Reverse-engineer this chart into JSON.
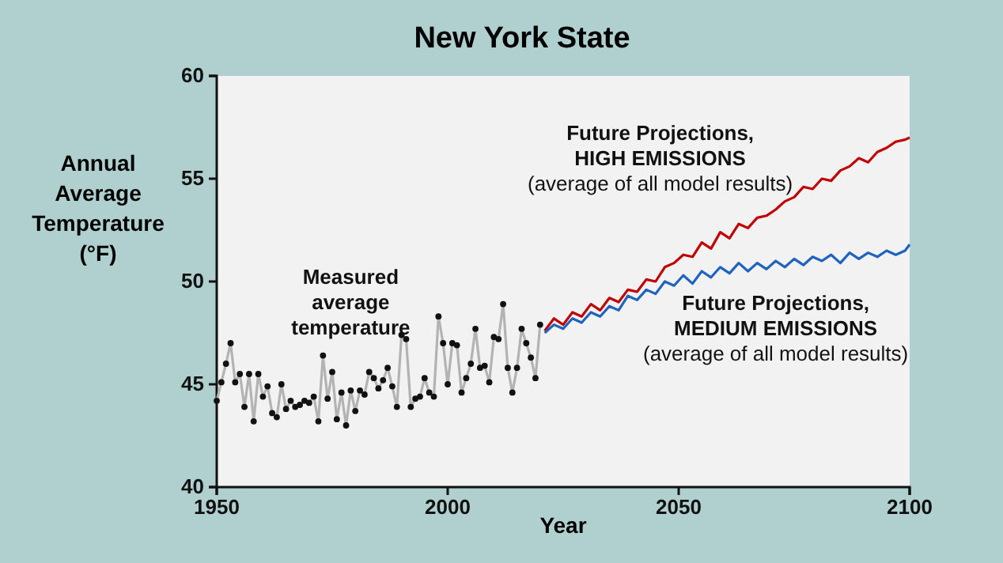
{
  "chart_data": {
    "type": "line",
    "title": "New York State",
    "xlabel": "Year",
    "ylabel": "Annual Average Temperature (°F)",
    "xlim": [
      1950,
      2100
    ],
    "xticks": [
      1950,
      2000,
      2050,
      2100
    ],
    "ylim": [
      40,
      60
    ],
    "yticks": [
      40,
      45,
      50,
      55,
      60
    ],
    "grid": false,
    "legend": false,
    "series": [
      {
        "name": "Measured average temperature",
        "color": "#b3b3b3",
        "marker": "circle",
        "x": [
          1950,
          1951,
          1952,
          1953,
          1954,
          1955,
          1956,
          1957,
          1958,
          1959,
          1960,
          1961,
          1962,
          1963,
          1964,
          1965,
          1966,
          1967,
          1968,
          1969,
          1970,
          1971,
          1972,
          1973,
          1974,
          1975,
          1976,
          1977,
          1978,
          1979,
          1980,
          1981,
          1982,
          1983,
          1984,
          1985,
          1986,
          1987,
          1988,
          1989,
          1990,
          1991,
          1992,
          1993,
          1994,
          1995,
          1996,
          1997,
          1998,
          1999,
          2000,
          2001,
          2002,
          2003,
          2004,
          2005,
          2006,
          2007,
          2008,
          2009,
          2010,
          2011,
          2012,
          2013,
          2014,
          2015,
          2016,
          2017,
          2018,
          2019,
          2020
        ],
        "values": [
          44.2,
          45.1,
          46.0,
          47.0,
          45.1,
          45.5,
          43.9,
          45.5,
          43.2,
          45.5,
          44.4,
          44.9,
          43.6,
          43.4,
          45.0,
          43.8,
          44.2,
          43.9,
          44.0,
          44.2,
          44.1,
          44.4,
          43.2,
          46.4,
          44.3,
          45.6,
          43.3,
          44.6,
          43.0,
          44.7,
          43.7,
          44.7,
          44.5,
          45.6,
          45.3,
          44.8,
          45.2,
          45.8,
          44.9,
          43.9,
          47.4,
          47.2,
          43.9,
          44.3,
          44.4,
          45.3,
          44.6,
          44.4,
          48.3,
          47.0,
          45.0,
          47.0,
          46.9,
          44.6,
          45.3,
          46.0,
          47.7,
          45.8,
          45.9,
          45.1,
          47.3,
          47.2,
          48.9,
          45.8,
          44.6,
          45.8,
          47.7,
          47.0,
          46.3,
          45.3,
          47.9
        ]
      },
      {
        "name": "Future Projections, HIGH EMISSIONS",
        "color": "#c00000",
        "marker": "none",
        "x": [
          2021,
          2023,
          2025,
          2027,
          2029,
          2031,
          2033,
          2035,
          2037,
          2039,
          2041,
          2043,
          2045,
          2047,
          2049,
          2051,
          2053,
          2055,
          2057,
          2059,
          2061,
          2063,
          2065,
          2067,
          2069,
          2071,
          2073,
          2075,
          2077,
          2079,
          2081,
          2083,
          2085,
          2087,
          2089,
          2091,
          2093,
          2095,
          2097,
          2099,
          2100
        ],
        "values": [
          47.6,
          48.2,
          47.9,
          48.5,
          48.3,
          48.9,
          48.6,
          49.2,
          49.0,
          49.6,
          49.5,
          50.1,
          50.0,
          50.7,
          50.9,
          51.3,
          51.2,
          51.9,
          51.6,
          52.4,
          52.1,
          52.8,
          52.6,
          53.1,
          53.2,
          53.5,
          53.9,
          54.1,
          54.6,
          54.5,
          55.0,
          54.9,
          55.4,
          55.6,
          56.0,
          55.8,
          56.3,
          56.5,
          56.8,
          56.9,
          57.0
        ]
      },
      {
        "name": "Future Projections, MEDIUM EMISSIONS",
        "color": "#1f63c0",
        "marker": "none",
        "x": [
          2021,
          2023,
          2025,
          2027,
          2029,
          2031,
          2033,
          2035,
          2037,
          2039,
          2041,
          2043,
          2045,
          2047,
          2049,
          2051,
          2053,
          2055,
          2057,
          2059,
          2061,
          2063,
          2065,
          2067,
          2069,
          2071,
          2073,
          2075,
          2077,
          2079,
          2081,
          2083,
          2085,
          2087,
          2089,
          2091,
          2093,
          2095,
          2097,
          2099,
          2100
        ],
        "values": [
          47.5,
          47.9,
          47.7,
          48.2,
          48.0,
          48.5,
          48.3,
          48.8,
          48.6,
          49.3,
          49.1,
          49.6,
          49.4,
          50.0,
          49.8,
          50.3,
          49.9,
          50.5,
          50.2,
          50.7,
          50.4,
          50.9,
          50.5,
          50.9,
          50.6,
          51.0,
          50.7,
          51.1,
          50.8,
          51.2,
          51.0,
          51.3,
          50.9,
          51.4,
          51.1,
          51.4,
          51.2,
          51.5,
          51.3,
          51.5,
          51.8
        ]
      }
    ],
    "annotations": [
      "(average of all model results)",
      "(average of all model results)"
    ]
  }
}
